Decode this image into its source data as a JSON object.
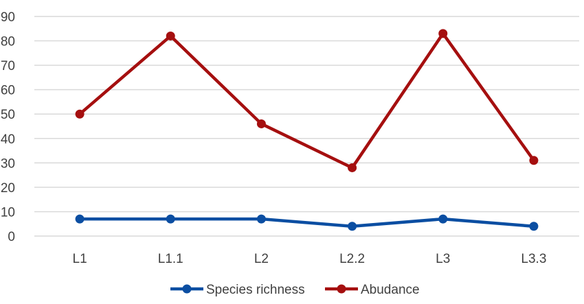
{
  "chart_data": {
    "type": "line",
    "title": "",
    "xlabel": "",
    "ylabel": "",
    "categories": [
      "L1",
      "L1.1",
      "L2",
      "L2.2",
      "L3",
      "L3.3"
    ],
    "ylim": [
      0,
      90
    ],
    "yticks": [
      0,
      10,
      20,
      30,
      40,
      50,
      60,
      70,
      80,
      90
    ],
    "grid": true,
    "legend": "bottom-center",
    "series": [
      {
        "name": "Species richness",
        "color": "#0B4EA2",
        "values": [
          7,
          7,
          7,
          4,
          7,
          4
        ]
      },
      {
        "name": "Abudance",
        "color": "#A50F0F",
        "values": [
          50,
          82,
          46,
          28,
          83,
          31
        ]
      }
    ]
  }
}
